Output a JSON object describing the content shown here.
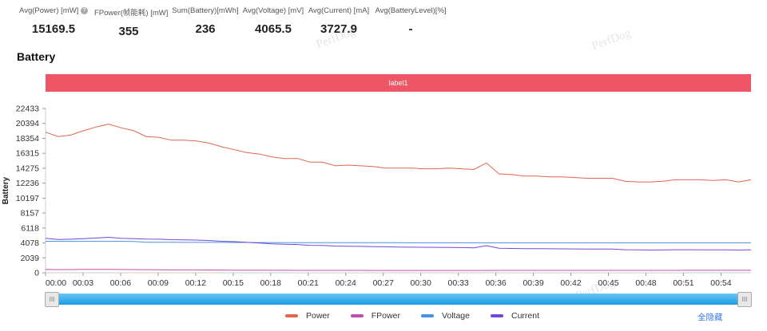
{
  "stats": [
    {
      "label": "Avg(Power) [mW]",
      "value": "15169.5",
      "help": true
    },
    {
      "label": "FPower(帧能耗) [mW]",
      "value": "355"
    },
    {
      "label": "Sum(Battery)[mWh]",
      "value": "236"
    },
    {
      "label": "Avg(Voltage) [mV]",
      "value": "4065.5"
    },
    {
      "label": "Avg(Current) [mA]",
      "value": "3727.9"
    },
    {
      "label": "Avg(BatteryLevel)[%]",
      "value": "-"
    }
  ],
  "watermark": "PerfDog",
  "section_title": "Battery",
  "label_bar": "label1",
  "hide_all": "全隐藏",
  "chart_data": {
    "type": "line",
    "ylabel": "Battery",
    "yticks": [
      0,
      2039,
      4078,
      6118,
      8157,
      10197,
      12236,
      14275,
      16315,
      18354,
      20394,
      22433
    ],
    "ylim": [
      0,
      22433
    ],
    "xticks": [
      "00:00",
      "00:03",
      "00:06",
      "00:09",
      "00:12",
      "00:15",
      "00:18",
      "00:21",
      "00:24",
      "00:27",
      "00:30",
      "00:33",
      "00:36",
      "00:39",
      "00:42",
      "00:45",
      "00:48",
      "00:51",
      "00:54"
    ],
    "xlim_minutes": [
      0,
      56.4
    ],
    "series": [
      {
        "name": "Power",
        "color": "#e0664f",
        "values": [
          19200,
          18600,
          18800,
          19400,
          19900,
          20300,
          19800,
          19400,
          18600,
          18500,
          18100,
          18100,
          18000,
          17700,
          17200,
          16800,
          16400,
          16200,
          15800,
          15600,
          15600,
          15100,
          15100,
          14600,
          14700,
          14600,
          14500,
          14300,
          14300,
          14300,
          14200,
          14200,
          14300,
          14200,
          14100,
          15000,
          13500,
          13400,
          13200,
          13200,
          13100,
          13100,
          13000,
          12900,
          12900,
          12900,
          12500,
          12400,
          12400,
          12500,
          12700,
          12700,
          12700,
          12600,
          12700,
          12400,
          12700
        ]
      },
      {
        "name": "FPower",
        "color": "#c04fb0",
        "values": [
          450,
          440,
          440,
          460,
          470,
          460,
          450,
          440,
          430,
          400,
          390,
          390,
          390,
          380,
          370,
          360,
          350,
          350,
          340,
          340,
          330,
          330,
          330,
          330,
          330,
          330,
          320,
          320,
          320,
          320,
          320,
          320,
          320,
          320,
          320,
          320,
          330,
          330,
          330,
          330,
          330,
          330,
          330,
          330,
          330,
          330,
          330,
          330,
          330,
          330,
          330,
          340,
          340,
          340,
          340,
          340,
          340
        ]
      },
      {
        "name": "Voltage",
        "color": "#4a90e2",
        "values": [
          4300,
          4290,
          4290,
          4290,
          4290,
          4290,
          4290,
          4280,
          4160,
          4160,
          4160,
          4150,
          4150,
          4150,
          4150,
          4140,
          4140,
          4130,
          4130,
          4120,
          4120,
          4120,
          4110,
          4110,
          4110,
          4110,
          4110,
          4110,
          4110,
          4100,
          4100,
          4100,
          4100,
          4100,
          4100,
          4100,
          4100,
          4100,
          4100,
          4100,
          4100,
          4100,
          4100,
          4100,
          4100,
          4100,
          4100,
          4100,
          4100,
          4100,
          4100,
          4100,
          4100,
          4100,
          4100,
          4100,
          4100
        ]
      },
      {
        "name": "Current",
        "color": "#7048d8",
        "values": [
          4700,
          4550,
          4580,
          4650,
          4750,
          4850,
          4720,
          4650,
          4600,
          4580,
          4520,
          4500,
          4470,
          4400,
          4300,
          4250,
          4150,
          4050,
          3950,
          3900,
          3850,
          3750,
          3720,
          3650,
          3620,
          3600,
          3560,
          3550,
          3520,
          3500,
          3480,
          3470,
          3460,
          3440,
          3400,
          3700,
          3350,
          3320,
          3300,
          3290,
          3280,
          3270,
          3260,
          3250,
          3240,
          3230,
          3150,
          3120,
          3100,
          3110,
          3150,
          3150,
          3140,
          3130,
          3120,
          3100,
          3120
        ]
      }
    ]
  }
}
